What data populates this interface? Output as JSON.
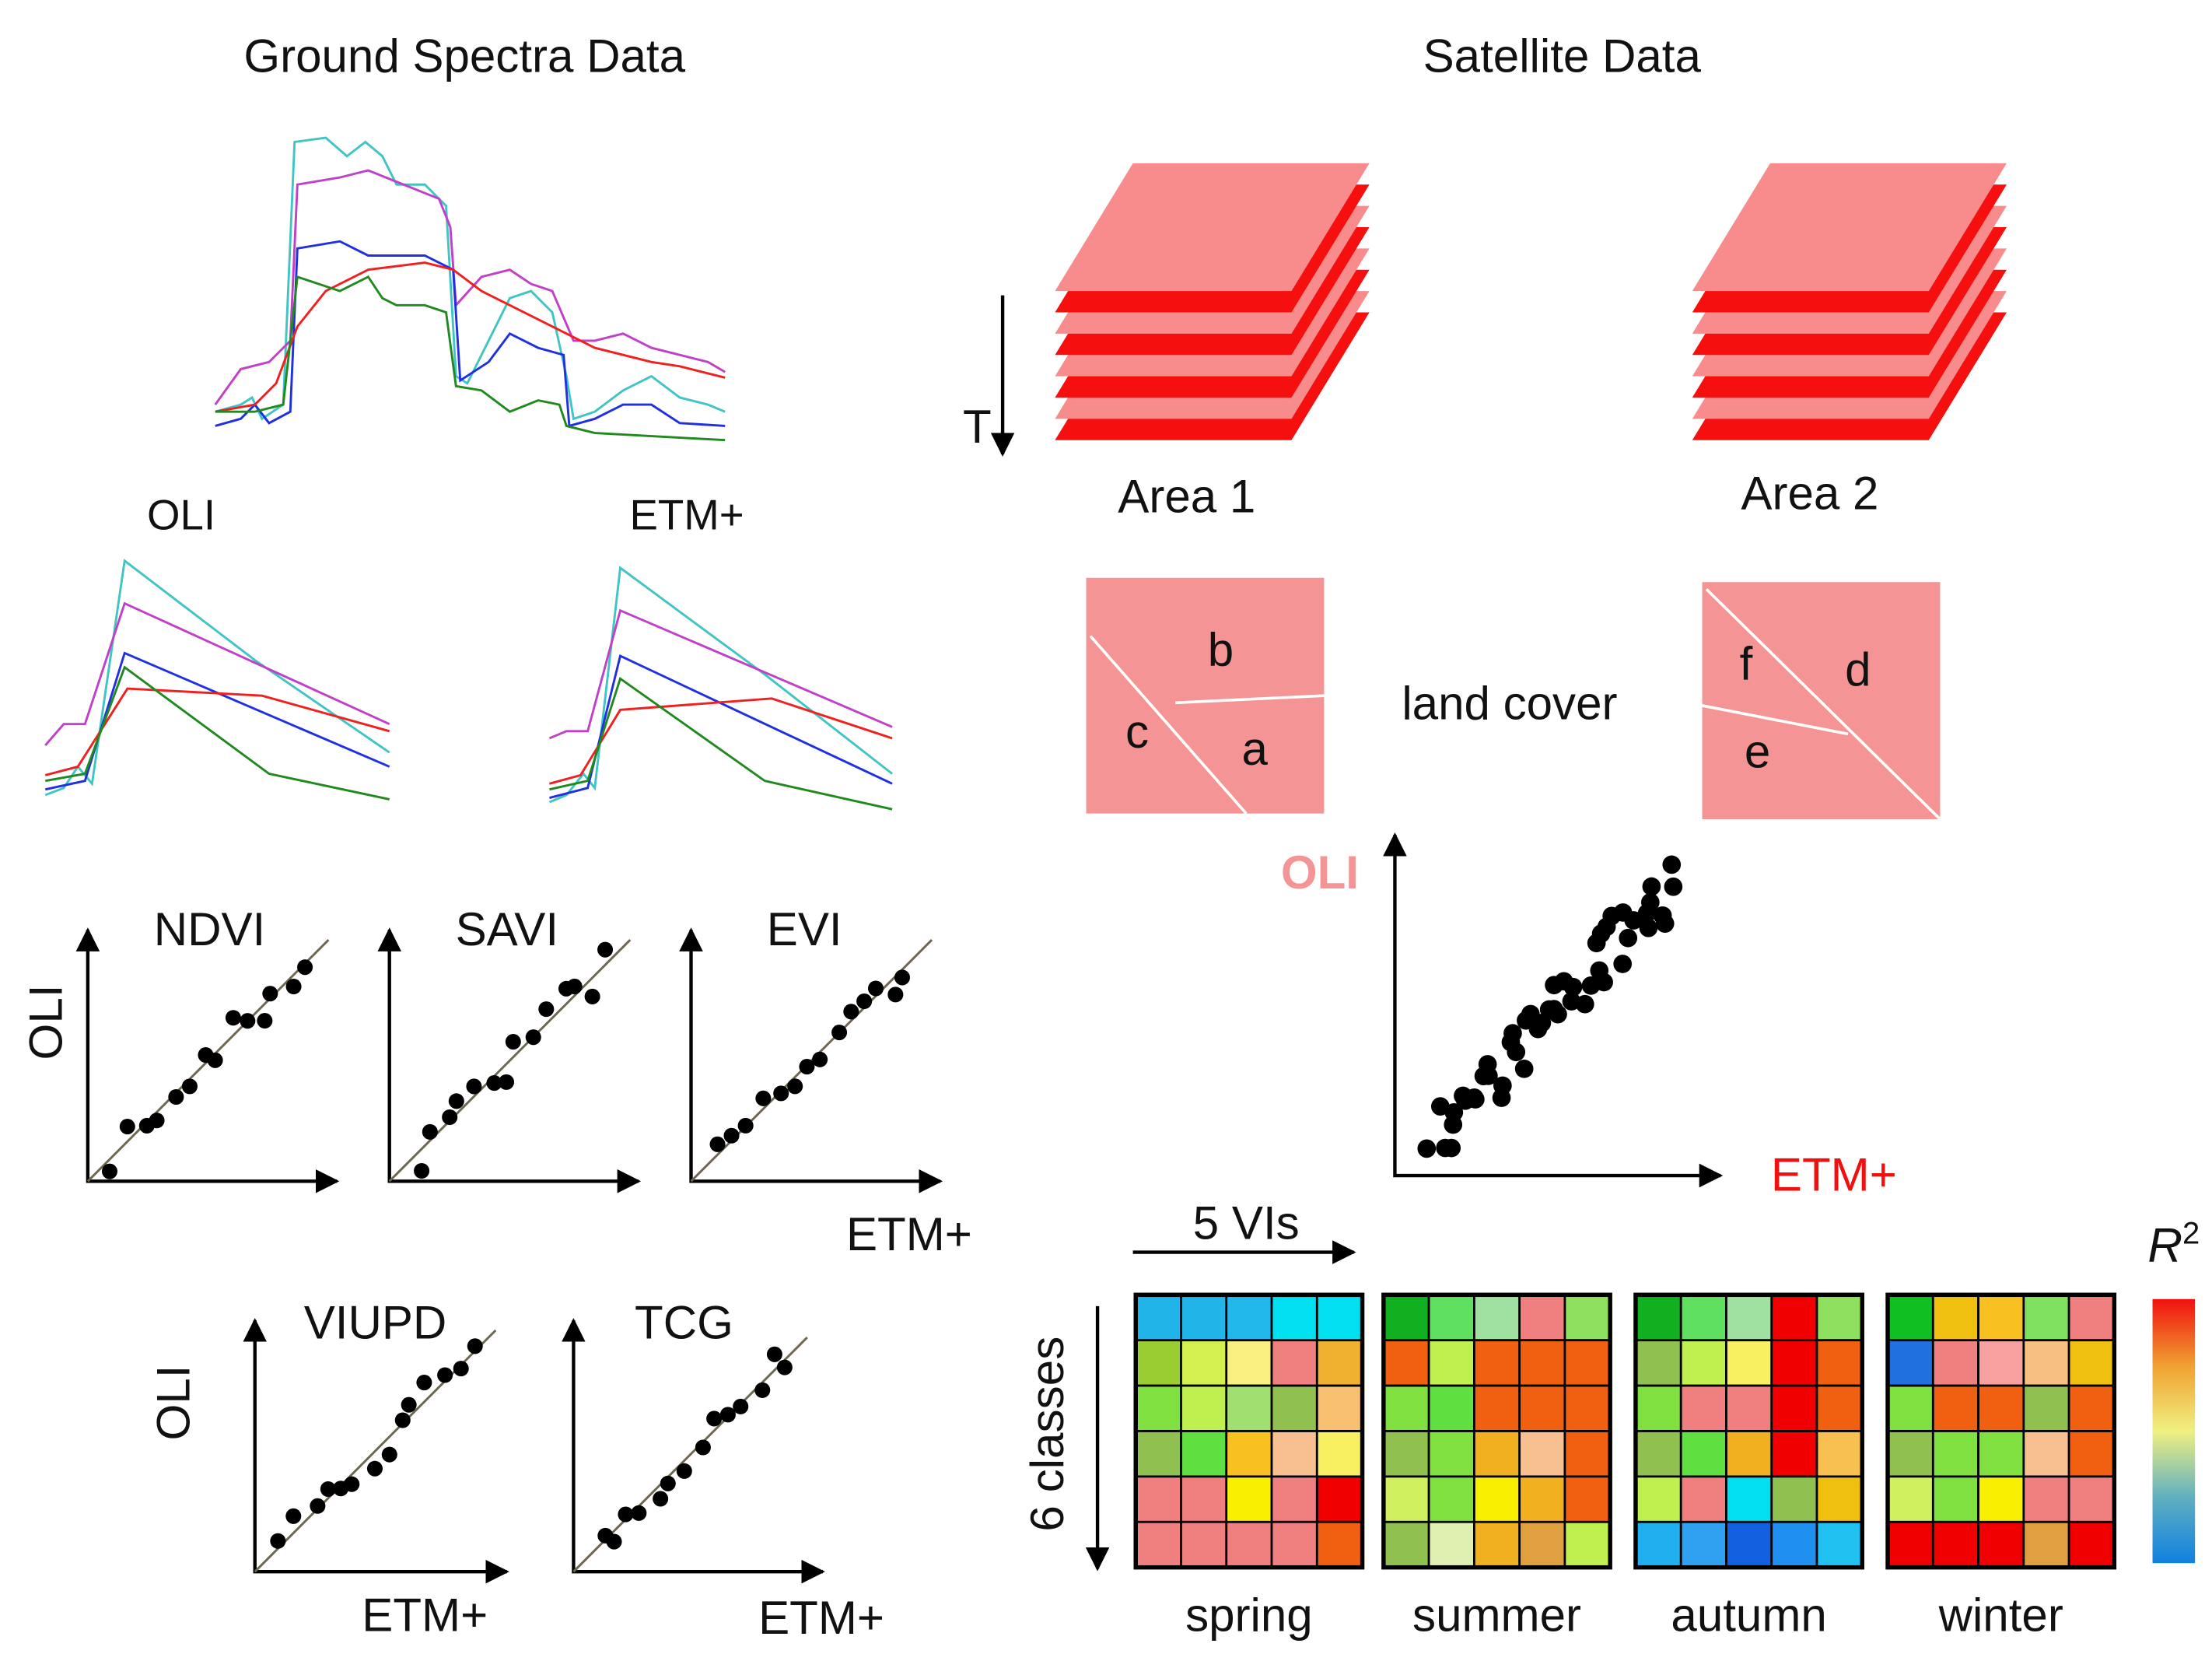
{
  "ground": {
    "title": "Ground Spectra Data",
    "sensors": [
      "OLI",
      "ETM+"
    ],
    "vi_rows": [
      {
        "panels": [
          "NDVI",
          "SAVI",
          "EVI"
        ],
        "y_label": "OLI",
        "x_labels": [
          "ETM+"
        ]
      },
      {
        "panels": [
          "VIUPD",
          "TCG"
        ],
        "y_label": "OLI",
        "x_labels": [
          "ETM+",
          "ETM+"
        ]
      }
    ]
  },
  "satellite": {
    "title": "Satellite Data",
    "time_axis": "T",
    "areas": [
      "Area 1",
      "Area 2"
    ],
    "layer_colors": [
      "#f88c8c",
      "#f50f0f"
    ],
    "land_cover": {
      "label": "land cover",
      "area1": [
        "b",
        "c",
        "a"
      ],
      "area2": [
        "f",
        "d",
        "e"
      ],
      "color": "#f49494"
    },
    "scatter": {
      "y_label": "OLI",
      "x_label": "ETM+",
      "y_color": "#f49494",
      "x_color": "#f01010"
    },
    "heatmap": {
      "x_label": "5 VIs",
      "y_label": "6 classes",
      "seasons": [
        {
          "name": "spring",
          "cells": [
            [
              "#21b4e8",
              "#21b4e8",
              "#22b8ec",
              "#00e0f0",
              "#00e0f0"
            ],
            [
              "#9acd32",
              "#d4f050",
              "#f8f080",
              "#f08080",
              "#f0b030"
            ],
            [
              "#80e040",
              "#c0f050",
              "#a0e070",
              "#90c050",
              "#f8c070"
            ],
            [
              "#90c050",
              "#60e040",
              "#f8c020",
              "#f8c090",
              "#f8f060"
            ],
            [
              "#f08080",
              "#f08080",
              "#f8f000",
              "#f08080",
              "#f00000"
            ],
            [
              "#f08080",
              "#f08080",
              "#f08080",
              "#f08080",
              "#f06010"
            ]
          ]
        },
        {
          "name": "summer",
          "cells": [
            [
              "#10b020",
              "#60e060",
              "#a0e0a0",
              "#f08080",
              "#90e060"
            ],
            [
              "#f06010",
              "#c0f050",
              "#f06010",
              "#f06010",
              "#f06010"
            ],
            [
              "#80e040",
              "#60e040",
              "#f06010",
              "#f06010",
              "#f06010"
            ],
            [
              "#90c050",
              "#80e040",
              "#f0b020",
              "#f8c090",
              "#f06010"
            ],
            [
              "#d0f060",
              "#80e040",
              "#f8f000",
              "#f0b020",
              "#f06010"
            ],
            [
              "#90c050",
              "#e0f0b0",
              "#f0b020",
              "#e0a040",
              "#c0f050"
            ]
          ]
        },
        {
          "name": "autumn",
          "cells": [
            [
              "#10b020",
              "#60e060",
              "#a0e0a0",
              "#f00000",
              "#90e060"
            ],
            [
              "#90c050",
              "#c0f050",
              "#f8f060",
              "#f00000",
              "#f06010"
            ],
            [
              "#80e040",
              "#f08080",
              "#f08080",
              "#f00000",
              "#f06010"
            ],
            [
              "#90c050",
              "#60e040",
              "#f0b020",
              "#f00000",
              "#f8c050"
            ],
            [
              "#c0f050",
              "#f08080",
              "#00e0f0",
              "#90c050",
              "#f0c010"
            ],
            [
              "#20b0f0",
              "#30a0f0",
              "#1060e0",
              "#2090f0",
              "#20c0f0"
            ]
          ]
        },
        {
          "name": "winter",
          "cells": [
            [
              "#10c020",
              "#f0c010",
              "#f8c020",
              "#80e060",
              "#f08080"
            ],
            [
              "#2070e0",
              "#f08080",
              "#f8a0a0",
              "#f8c080",
              "#f0c010"
            ],
            [
              "#80e040",
              "#f06010",
              "#f06010",
              "#90c050",
              "#f06010"
            ],
            [
              "#90c050",
              "#80e040",
              "#80e040",
              "#f8c090",
              "#f06010"
            ],
            [
              "#d0f060",
              "#80e040",
              "#f8f000",
              "#f08080",
              "#f08080"
            ],
            [
              "#f00000",
              "#f00000",
              "#f00000",
              "#e0a040",
              "#f00000"
            ]
          ]
        }
      ],
      "colorbar": {
        "symbol": "R",
        "exponent": "2",
        "colors": [
          "#f01010",
          "#f0a030",
          "#f0f080",
          "#60b0c0",
          "#1080e0"
        ]
      }
    }
  }
}
